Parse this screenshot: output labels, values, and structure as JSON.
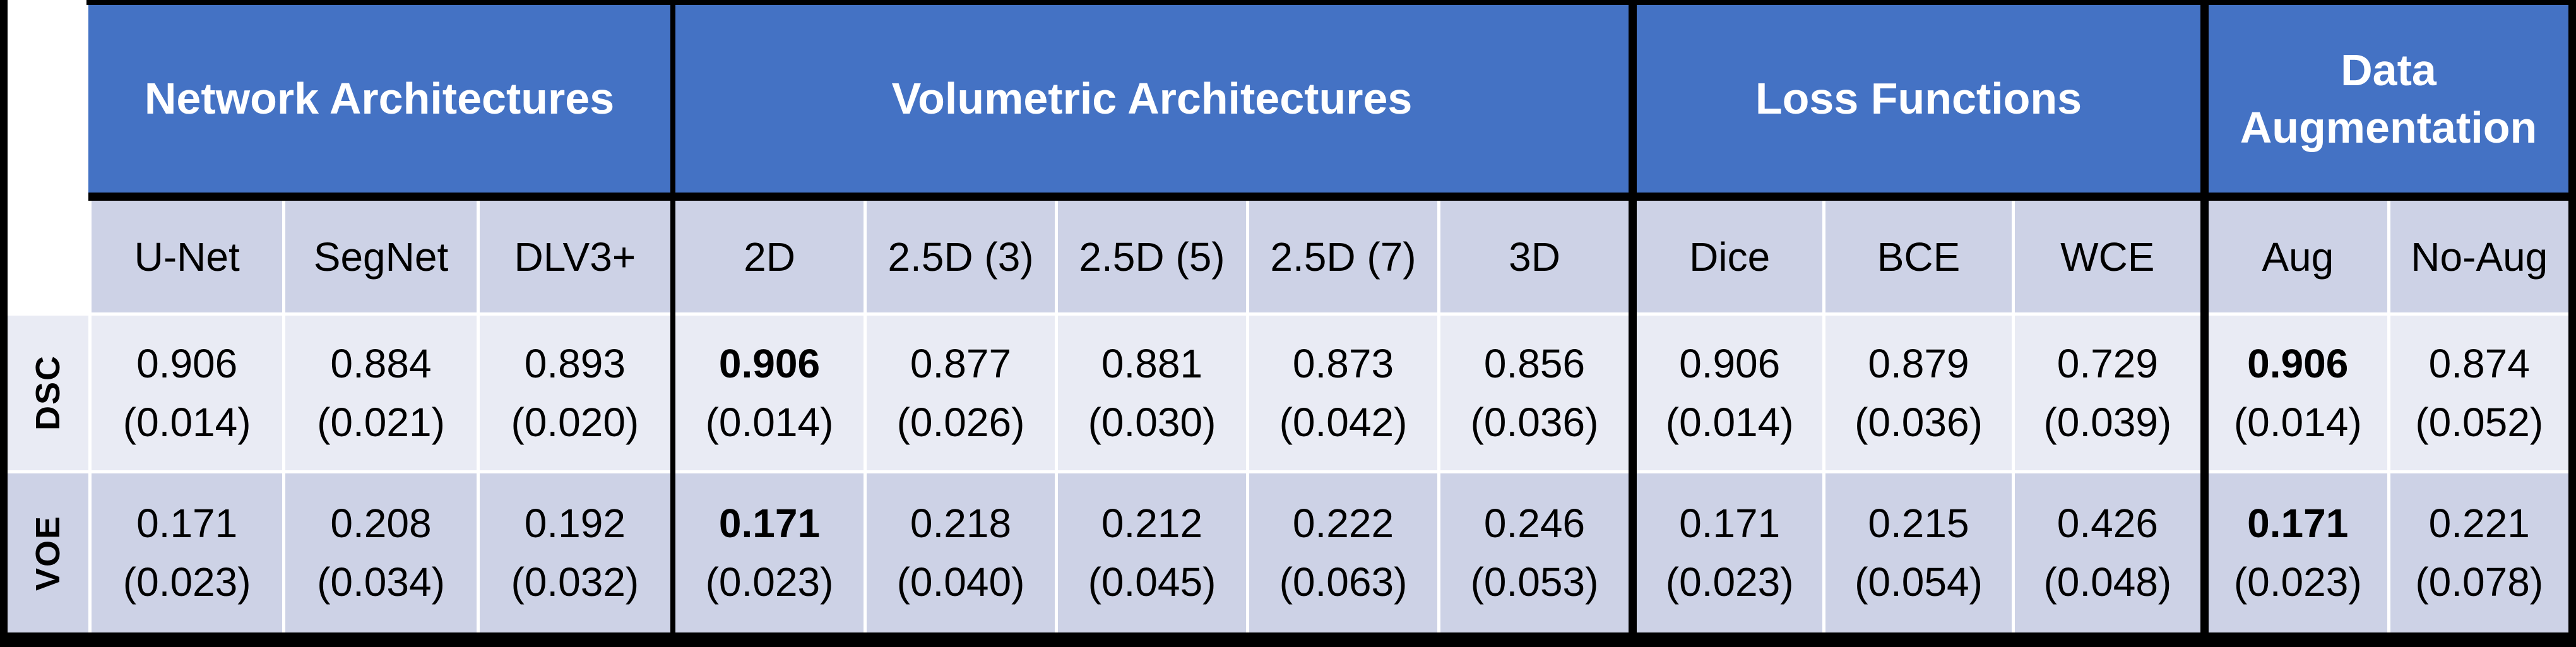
{
  "colors": {
    "header_blue": "#4472C4",
    "band_light": "#E9EBF4",
    "band_dark": "#CDD2E6",
    "grid_black": "#000000",
    "header_text": "#FFFFFF"
  },
  "row_labels": {
    "dsc": "DSC",
    "voe": "VOE"
  },
  "groups": [
    {
      "title": "Network Architectures",
      "columns": [
        {
          "label": "U-Net",
          "dsc": "0.906",
          "dsc_sd": "(0.014)",
          "voe": "0.171",
          "voe_sd": "(0.023)",
          "best": false
        },
        {
          "label": "SegNet",
          "dsc": "0.884",
          "dsc_sd": "(0.021)",
          "voe": "0.208",
          "voe_sd": "(0.034)",
          "best": false
        },
        {
          "label": "DLV3+",
          "dsc": "0.893",
          "dsc_sd": "(0.020)",
          "voe": "0.192",
          "voe_sd": "(0.032)",
          "best": false
        }
      ]
    },
    {
      "title": "Volumetric Architectures",
      "columns": [
        {
          "label": "2D",
          "dsc": "0.906",
          "dsc_sd": "(0.014)",
          "voe": "0.171",
          "voe_sd": "(0.023)",
          "best": true
        },
        {
          "label": "2.5D (3)",
          "dsc": "0.877",
          "dsc_sd": "(0.026)",
          "voe": "0.218",
          "voe_sd": "(0.040)",
          "best": false
        },
        {
          "label": "2.5D (5)",
          "dsc": "0.881",
          "dsc_sd": "(0.030)",
          "voe": "0.212",
          "voe_sd": "(0.045)",
          "best": false
        },
        {
          "label": "2.5D (7)",
          "dsc": "0.873",
          "dsc_sd": "(0.042)",
          "voe": "0.222",
          "voe_sd": "(0.063)",
          "best": false
        },
        {
          "label": "3D",
          "dsc": "0.856",
          "dsc_sd": "(0.036)",
          "voe": "0.246",
          "voe_sd": "(0.053)",
          "best": false
        }
      ]
    },
    {
      "title": "Loss Functions",
      "columns": [
        {
          "label": "Dice",
          "dsc": "0.906",
          "dsc_sd": "(0.014)",
          "voe": "0.171",
          "voe_sd": "(0.023)",
          "best": false
        },
        {
          "label": "BCE",
          "dsc": "0.879",
          "dsc_sd": "(0.036)",
          "voe": "0.215",
          "voe_sd": "(0.054)",
          "best": false
        },
        {
          "label": "WCE",
          "dsc": "0.729",
          "dsc_sd": "(0.039)",
          "voe": "0.426",
          "voe_sd": "(0.048)",
          "best": false
        }
      ]
    },
    {
      "title": "Data Augmentation",
      "columns": [
        {
          "label": "Aug",
          "dsc": "0.906",
          "dsc_sd": "(0.014)",
          "voe": "0.171",
          "voe_sd": "(0.023)",
          "best": true
        },
        {
          "label": "No-Aug",
          "dsc": "0.874",
          "dsc_sd": "(0.052)",
          "voe": "0.221",
          "voe_sd": "(0.078)",
          "best": false
        }
      ]
    }
  ],
  "chart_data": {
    "type": "table",
    "title": "Segmentation results: mean (standard deviation) per configuration",
    "row_labels": [
      "DSC",
      "VOE"
    ],
    "column_groups": [
      {
        "title": "Network Architectures",
        "columns": [
          "U-Net",
          "SegNet",
          "DLV3+"
        ]
      },
      {
        "title": "Volumetric Architectures",
        "columns": [
          "2D",
          "2.5D (3)",
          "2.5D (5)",
          "2.5D (7)",
          "3D"
        ]
      },
      {
        "title": "Loss Functions",
        "columns": [
          "Dice",
          "BCE",
          "WCE"
        ]
      },
      {
        "title": "Data Augmentation",
        "columns": [
          "Aug",
          "No-Aug"
        ]
      }
    ],
    "columns_flat": [
      "U-Net",
      "SegNet",
      "DLV3+",
      "2D",
      "2.5D (3)",
      "2.5D (5)",
      "2.5D (7)",
      "3D",
      "Dice",
      "BCE",
      "WCE",
      "Aug",
      "No-Aug"
    ],
    "dsc_mean": [
      0.906,
      0.884,
      0.893,
      0.906,
      0.877,
      0.881,
      0.873,
      0.856,
      0.906,
      0.879,
      0.729,
      0.906,
      0.874
    ],
    "dsc_sd": [
      0.014,
      0.021,
      0.02,
      0.014,
      0.026,
      0.03,
      0.042,
      0.036,
      0.014,
      0.036,
      0.039,
      0.014,
      0.052
    ],
    "voe_mean": [
      0.171,
      0.208,
      0.192,
      0.171,
      0.218,
      0.212,
      0.222,
      0.246,
      0.171,
      0.215,
      0.426,
      0.171,
      0.221
    ],
    "voe_sd": [
      0.023,
      0.034,
      0.032,
      0.023,
      0.04,
      0.045,
      0.063,
      0.053,
      0.023,
      0.054,
      0.048,
      0.023,
      0.078
    ],
    "bold_columns": [
      "2D",
      "Aug"
    ]
  }
}
